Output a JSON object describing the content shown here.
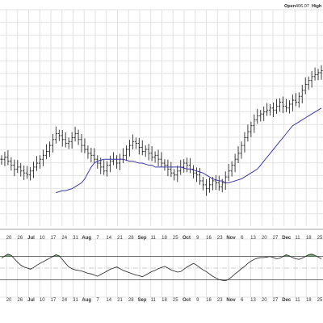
{
  "header": {
    "open_label": "Open",
    "open_value": "406.07",
    "high_label": "High"
  },
  "chart_data": {
    "type": "ohlc",
    "x_tick_labels": [
      "20",
      "26",
      "Jul",
      "10",
      "17",
      "24",
      "31",
      "Aug",
      "7",
      "14",
      "21",
      "28",
      "Sep",
      "11",
      "18",
      "25",
      "Oct",
      "9",
      "16",
      "23",
      "Nov",
      "6",
      "13",
      "20",
      "27",
      "Dec",
      "11",
      "18",
      "25"
    ],
    "x_month_ticks": [
      "Jul",
      "Aug",
      "Sep",
      "Oct",
      "Nov",
      "Dec"
    ],
    "price_series": {
      "close": [
        344,
        345,
        343,
        341,
        339,
        340,
        338,
        337,
        336,
        338,
        340,
        342,
        344,
        346,
        348,
        351,
        354,
        357,
        356,
        354,
        352,
        353,
        355,
        357,
        354,
        351,
        349,
        347,
        346,
        344,
        342,
        340,
        338,
        341,
        343,
        344,
        342,
        344,
        346,
        349,
        351,
        353,
        352,
        350,
        348,
        349,
        347,
        345,
        346,
        344,
        342,
        341,
        339,
        337,
        336,
        338,
        340,
        342,
        341,
        339,
        337,
        336,
        333,
        331,
        329,
        331,
        333,
        332,
        330,
        332,
        335,
        338,
        341,
        344,
        347,
        351,
        355,
        358,
        361,
        364,
        366,
        367,
        368,
        369,
        370,
        369,
        371,
        373,
        371,
        370,
        372,
        374,
        373,
        376,
        379,
        382,
        384,
        386,
        387,
        388,
        389
      ],
      "moving_average": [
        327,
        327.5,
        328,
        328,
        328.5,
        329,
        330,
        331,
        332,
        334,
        337,
        340,
        342,
        343,
        343.5,
        344,
        344,
        344,
        344,
        344,
        344,
        344,
        343.5,
        343,
        343,
        342.5,
        342,
        342,
        341.5,
        341,
        341,
        340,
        340,
        340,
        340,
        340,
        340,
        340,
        340,
        340,
        339.5,
        339,
        339,
        338.5,
        338,
        337.5,
        337,
        336,
        335,
        334,
        333.5,
        333,
        333,
        332,
        332,
        332.5,
        333,
        333.5,
        334,
        335,
        336,
        337,
        338,
        339,
        341,
        343,
        345,
        347,
        349,
        351,
        353,
        355,
        357,
        359,
        361,
        362,
        363,
        364,
        365,
        366,
        367,
        368,
        369,
        370
      ]
    },
    "oscillator": {
      "upper_line": 70,
      "lower_line": 30,
      "values": [
        67,
        71,
        74,
        72,
        66,
        60,
        55,
        52,
        50,
        48,
        51,
        55,
        58,
        61,
        64,
        67,
        70,
        73,
        71,
        65,
        58,
        52,
        49,
        47,
        46,
        45,
        43,
        41,
        40,
        38,
        36,
        39,
        42,
        45,
        48,
        50,
        52,
        49,
        46,
        44,
        42,
        40,
        38,
        37,
        35,
        38,
        41,
        44,
        46,
        49,
        51,
        53,
        50,
        47,
        45,
        43,
        44,
        48,
        52,
        55,
        58,
        55,
        51,
        47,
        44,
        40,
        36,
        33,
        30,
        29,
        28,
        31,
        35,
        40,
        44,
        49,
        53,
        58,
        62,
        65,
        67,
        68,
        68,
        69,
        70,
        68,
        66,
        67,
        70,
        73,
        71,
        68,
        66,
        65,
        67,
        70,
        73,
        74,
        72,
        69,
        66
      ]
    }
  }
}
